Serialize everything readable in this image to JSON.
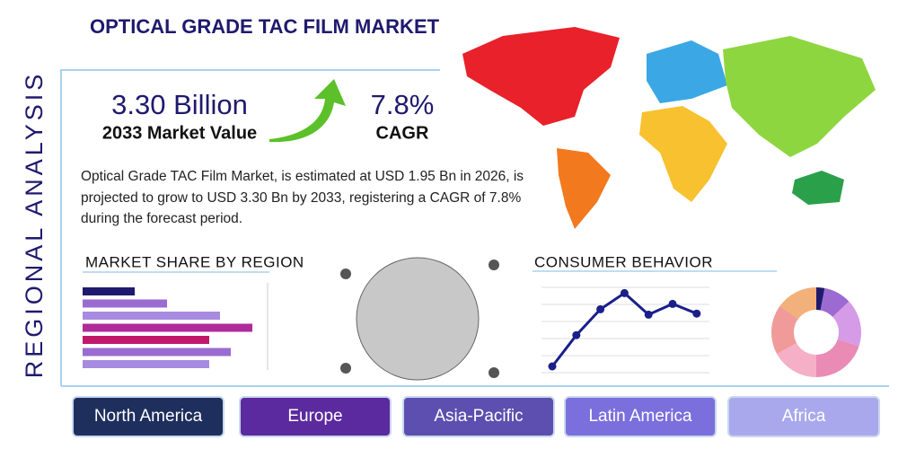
{
  "header": {
    "title": "OPTICAL GRADE TAC FILM MARKET",
    "side_label": "REGIONAL ANALYSIS"
  },
  "stats": [
    {
      "value": "3.30 Billion",
      "label": "2033 Market Value"
    },
    {
      "value": "7.8%",
      "label": "CAGR"
    }
  ],
  "description": "Optical Grade TAC Film Market, is estimated at USD 1.95 Bn in 2026, is projected to grow to USD 3.30 Bn by 2033, registering a CAGR of 7.8% during the forecast period.",
  "market_share": {
    "title": "MARKET SHARE BY REGION",
    "values": [
      58,
      94,
      153,
      189,
      141,
      165,
      141
    ],
    "colors": [
      "#1f1a6e",
      "#9b6bd1",
      "#a78be0",
      "#b02a9a",
      "#c2186b",
      "#9b6bd1",
      "#a78be0"
    ]
  },
  "consumer_behavior": {
    "title": "CONSUMER BEHAVIOR",
    "values": [
      10,
      39,
      63,
      78,
      58,
      68,
      59
    ],
    "color": "#1b1f8a"
  },
  "donut": {
    "values": [
      3,
      10,
      17,
      20,
      17,
      18,
      15
    ],
    "colors": [
      "#1f1a6e",
      "#9b6bd1",
      "#d59be6",
      "#e98bb5",
      "#f5b0c8",
      "#f19a9a",
      "#f2b07a"
    ]
  },
  "regions": [
    "North America",
    "Europe",
    "Asia-Pacific",
    "Latin America",
    "Africa"
  ]
}
